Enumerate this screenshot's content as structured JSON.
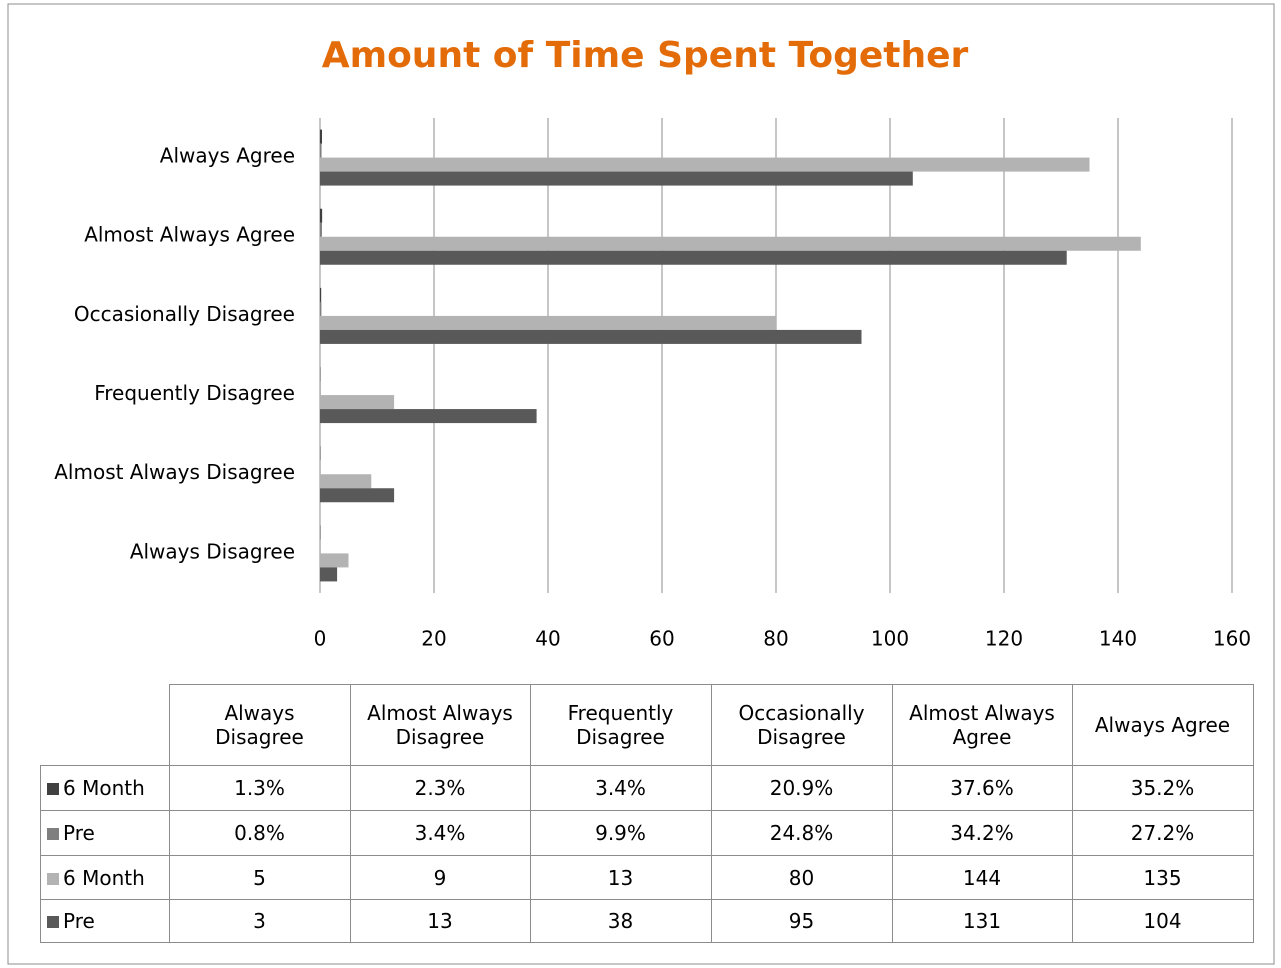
{
  "chart_data": {
    "type": "bar",
    "orientation": "horizontal",
    "title": "Amount of Time Spent Together",
    "categories": [
      "Always Disagree",
      "Almost Always Disagree",
      "Frequently Disagree",
      "Occasionally Disagree",
      "Almost Always Agree",
      "Always Agree"
    ],
    "series": [
      {
        "name": "6 Month",
        "color": "#404040",
        "values": [
          0.013,
          0.023,
          0.034,
          0.209,
          0.376,
          0.352
        ],
        "value_labels": [
          "1.3%",
          "2.3%",
          "3.4%",
          "20.9%",
          "37.6%",
          "35.2%"
        ]
      },
      {
        "name": "Pre",
        "color": "#7f7f7f",
        "values": [
          0.008,
          0.034,
          0.099,
          0.248,
          0.342,
          0.272
        ],
        "value_labels": [
          "0.8%",
          "3.4%",
          "9.9%",
          "24.8%",
          "34.2%",
          "27.2%"
        ]
      },
      {
        "name": "6 Month",
        "color": "#b3b3b3",
        "values": [
          5,
          9,
          13,
          80,
          144,
          135
        ]
      },
      {
        "name": "Pre",
        "color": "#595959",
        "values": [
          3,
          13,
          38,
          95,
          131,
          104
        ]
      }
    ],
    "xlim": [
      0,
      160
    ],
    "xticks": [
      0,
      20,
      40,
      60,
      80,
      100,
      120,
      140,
      160
    ],
    "grid": true
  }
}
